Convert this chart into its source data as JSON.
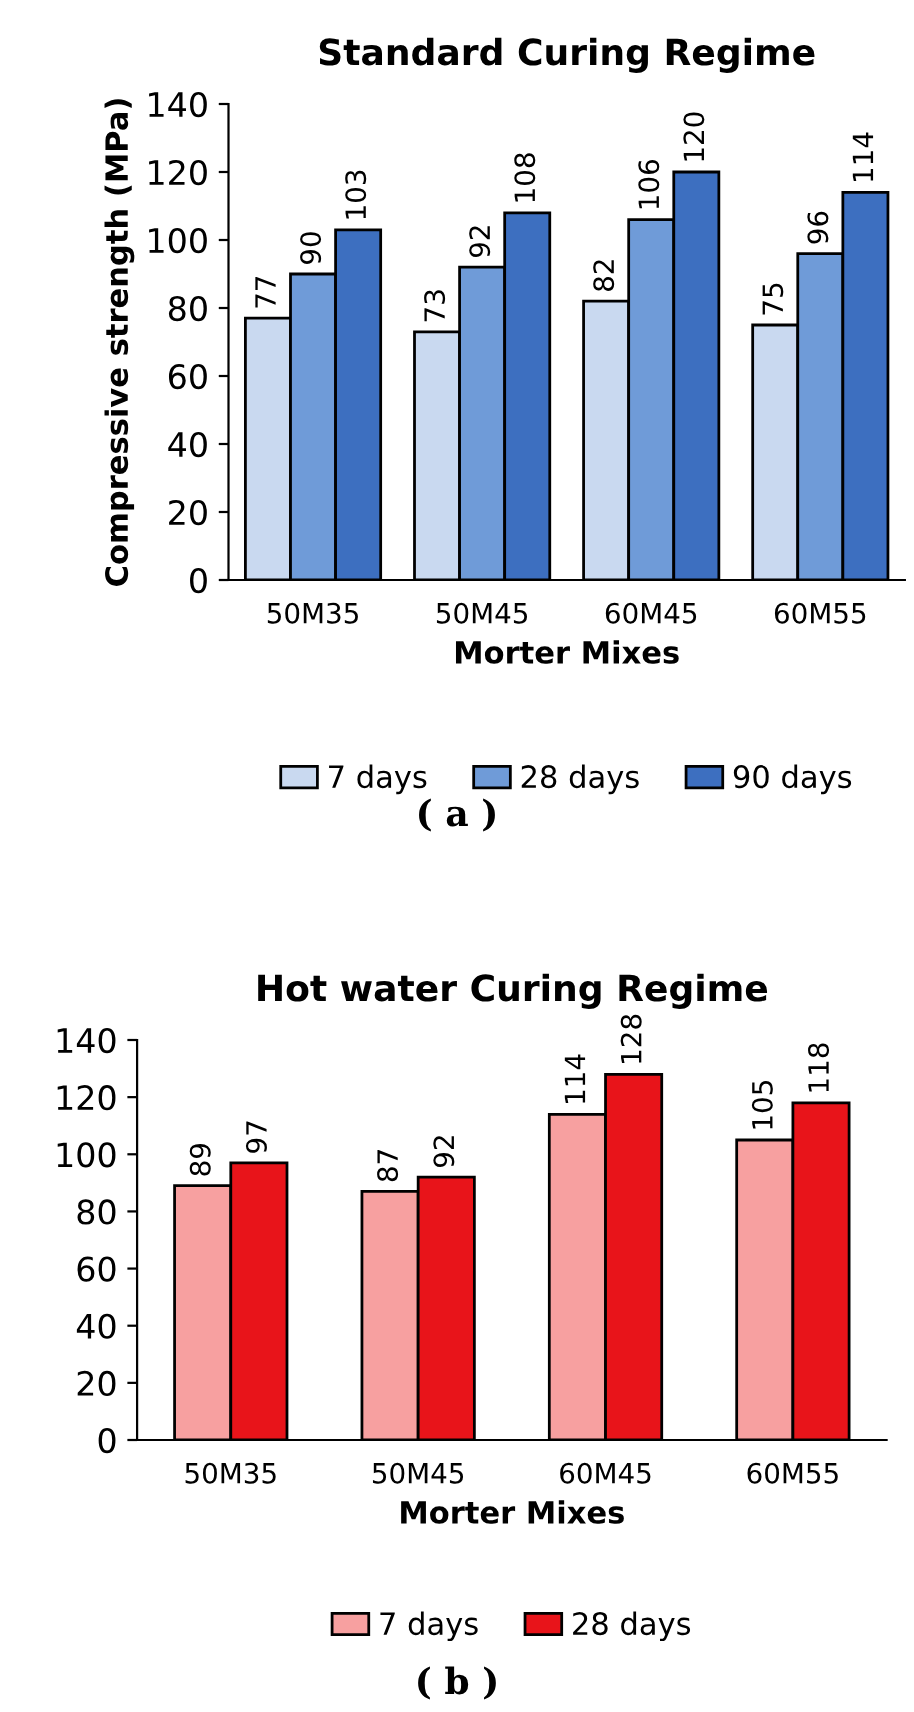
{
  "chart_data": [
    {
      "type": "bar",
      "title": "Standard Curing Regime",
      "xlabel": "Morter Mixes",
      "ylabel": "Compressive strength (MPa)",
      "categories": [
        "50M35",
        "50M45",
        "60M45",
        "60M55"
      ],
      "series": [
        {
          "name": "7 days",
          "color": "#c9d9f0",
          "values": [
            77,
            73,
            82,
            75
          ]
        },
        {
          "name": "28 days",
          "color": "#6f9bd8",
          "values": [
            90,
            92,
            106,
            96
          ]
        },
        {
          "name": "90 days",
          "color": "#3d6fc0",
          "values": [
            103,
            108,
            120,
            114
          ]
        }
      ],
      "ylim": [
        0,
        140
      ],
      "yticks": [
        0,
        20,
        40,
        60,
        80,
        100,
        120,
        140
      ],
      "data_labels": true,
      "legend": "bottom",
      "grid": false,
      "annotations": [
        "( a )"
      ]
    },
    {
      "type": "bar",
      "title": "Hot water Curing Regime",
      "xlabel": "Morter Mixes",
      "categories": [
        "50M35",
        "50M45",
        "60M45",
        "60M55"
      ],
      "series": [
        {
          "name": "7 days",
          "color": "#f7a0a0",
          "values": [
            89,
            87,
            114,
            105
          ]
        },
        {
          "name": "28 days",
          "color": "#e8141a",
          "values": [
            97,
            92,
            128,
            118
          ]
        }
      ],
      "ylim": [
        0,
        140
      ],
      "yticks": [
        0,
        20,
        40,
        60,
        80,
        100,
        120,
        140
      ],
      "data_labels": true,
      "legend": "bottom",
      "grid": false,
      "annotations": [
        "( b )"
      ]
    }
  ]
}
